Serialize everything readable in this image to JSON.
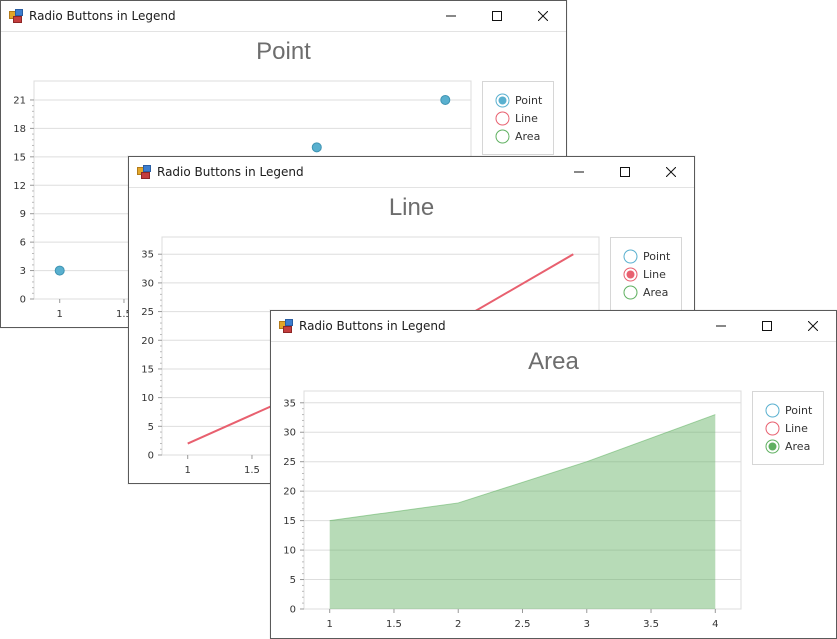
{
  "windows": [
    {
      "id": "point",
      "title": "Radio Buttons in Legend",
      "chart_title": "Point",
      "selected": "Point",
      "legend": [
        "Point",
        "Line",
        "Area"
      ],
      "y_ticks": [
        "0",
        "3",
        "6",
        "9",
        "12",
        "15",
        "18",
        "21"
      ],
      "x_ticks": [
        "1",
        "1.5"
      ],
      "chart_data": {
        "type": "scatter",
        "x": [
          1,
          2,
          3,
          4
        ],
        "y": [
          3,
          8,
          16,
          21
        ],
        "xlim": [
          0.8,
          4.2
        ],
        "ylim": [
          0,
          23
        ],
        "color": "#59b0cf"
      }
    },
    {
      "id": "line",
      "title": "Radio Buttons in Legend",
      "chart_title": "Line",
      "selected": "Line",
      "legend": [
        "Point",
        "Line",
        "Area"
      ],
      "y_ticks": [
        "0",
        "5",
        "10",
        "15",
        "20",
        "25",
        "30",
        "35"
      ],
      "x_ticks": [
        "1",
        "1.5"
      ],
      "chart_data": {
        "type": "line",
        "x": [
          1,
          2,
          3,
          4
        ],
        "y": [
          2,
          12,
          22,
          35
        ],
        "xlim": [
          0.8,
          4.2
        ],
        "ylim": [
          0,
          38
        ],
        "color": "#e8606f"
      }
    },
    {
      "id": "area",
      "title": "Radio Buttons in Legend",
      "chart_title": "Area",
      "selected": "Area",
      "legend": [
        "Point",
        "Line",
        "Area"
      ],
      "y_ticks": [
        "0",
        "5",
        "10",
        "15",
        "20",
        "25",
        "30",
        "35"
      ],
      "x_ticks": [
        "1",
        "1.5",
        "2",
        "2.5",
        "3",
        "3.5",
        "4"
      ],
      "chart_data": {
        "type": "area",
        "x": [
          1,
          2,
          3,
          4
        ],
        "y": [
          15,
          18,
          25,
          33
        ],
        "xlim": [
          0.8,
          4.2
        ],
        "ylim": [
          0,
          37
        ],
        "color": "#5fb060"
      }
    }
  ],
  "legend_colors": {
    "Point": "#59b0cf",
    "Line": "#e8606f",
    "Area": "#5fb060"
  }
}
